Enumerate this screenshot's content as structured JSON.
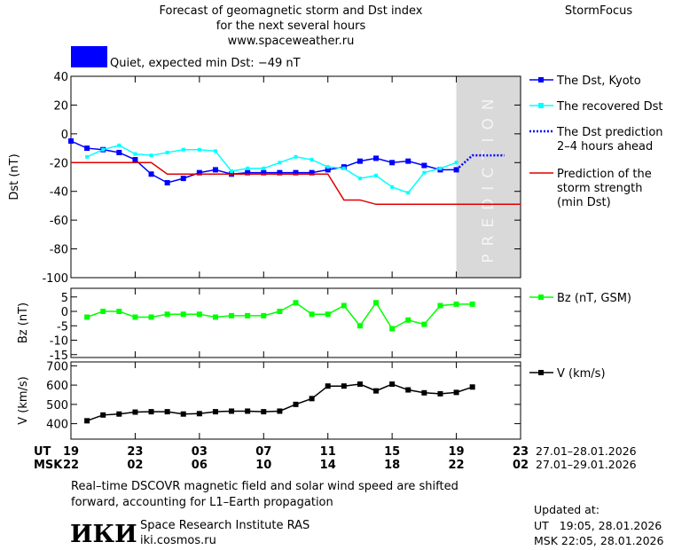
{
  "header": {
    "title": [
      "Forecast of geomagnetic storm and Dst index",
      "for the next several hours",
      "www.spaceweather.ru"
    ],
    "brand": "StormFocus",
    "status": "Quiet, expected min Dst: −49 nT",
    "status_color": "#0000ff"
  },
  "chart_data": [
    {
      "type": "line",
      "ylabel": "Dst (nT)",
      "ylim": [
        -100,
        40
      ],
      "yticks": [
        40,
        20,
        0,
        -20,
        -40,
        -60,
        -80,
        -100
      ],
      "prediction": {
        "x": [
          24,
          28
        ],
        "label": "PREDICTION"
      },
      "series": [
        {
          "name": "The Dst, Kyoto",
          "color": "#0000ff",
          "marker": "square",
          "dotted": false,
          "x": [
            0,
            1,
            2,
            3,
            4,
            5,
            6,
            7,
            8,
            9,
            10,
            11,
            12,
            13,
            14,
            15,
            16,
            17,
            18,
            19,
            20,
            21,
            22,
            23,
            24
          ],
          "values": [
            -5,
            -10,
            -11,
            -13,
            -18,
            -28,
            -34,
            -31,
            -27,
            -25,
            -28,
            -27,
            -27,
            -27,
            -27,
            -27,
            -25,
            -23,
            -19,
            -17,
            -20,
            -19,
            -22,
            -25,
            -25
          ]
        },
        {
          "name": "The recovered Dst",
          "color": "#00ffff",
          "marker": "square",
          "dotted": false,
          "x": [
            1,
            2,
            3,
            4,
            5,
            6,
            7,
            8,
            9,
            10,
            11,
            12,
            13,
            14,
            15,
            16,
            17,
            18,
            19,
            20,
            21,
            22,
            23,
            24
          ],
          "values": [
            -16,
            -11,
            -8,
            -14,
            -15,
            -13,
            -11,
            -11,
            -12,
            -26,
            -24,
            -24,
            -20,
            -16,
            -18,
            -23,
            -24,
            -31,
            -29,
            -37,
            -41,
            -27,
            -24,
            -20
          ]
        },
        {
          "name": "The Dst prediction\n2–4 hours ahead",
          "color": "#0000ff",
          "marker": "none",
          "dotted": true,
          "x": [
            24,
            25,
            26,
            27
          ],
          "values": [
            -25,
            -15,
            -15,
            -15
          ]
        },
        {
          "name": "Prediction of the\nstorm strength\n(min Dst)",
          "color": "#e00000",
          "marker": "none",
          "dotted": false,
          "x": [
            0,
            5,
            6,
            16,
            17,
            18,
            19,
            28
          ],
          "values": [
            -20,
            -20,
            -28,
            -28,
            -46,
            -46,
            -49,
            -49
          ]
        }
      ]
    },
    {
      "type": "line",
      "ylabel": "Bz (nT)",
      "ylim": [
        -16,
        8
      ],
      "yticks": [
        5,
        0,
        -5,
        -10,
        -15
      ],
      "series": [
        {
          "name": "Bz (nT, GSM)",
          "color": "#00ff00",
          "marker": "square",
          "dotted": false,
          "x": [
            1,
            2,
            3,
            4,
            5,
            6,
            7,
            8,
            9,
            10,
            11,
            12,
            13,
            14,
            15,
            16,
            17,
            18,
            19,
            20,
            21,
            22,
            23,
            24,
            25
          ],
          "values": [
            -2,
            0,
            0,
            -2,
            -2,
            -1,
            -1,
            -1,
            -2,
            -1.5,
            -1.5,
            -1.5,
            0,
            3,
            -1,
            -1,
            2,
            -5,
            3,
            -6,
            -3,
            -4.5,
            2,
            2.5,
            2.5
          ]
        }
      ]
    },
    {
      "type": "line",
      "ylabel": "V (km/s)",
      "ylim": [
        320,
        720
      ],
      "yticks": [
        700,
        600,
        500,
        400
      ],
      "xlim": [
        0,
        28
      ],
      "xticks": [
        {
          "value": 0,
          "label": "19"
        },
        {
          "value": 4,
          "label": "23"
        },
        {
          "value": 8,
          "label": "03"
        },
        {
          "value": 12,
          "label": "07"
        },
        {
          "value": 16,
          "label": "11"
        },
        {
          "value": 20,
          "label": "15"
        },
        {
          "value": 24,
          "label": "19"
        },
        {
          "value": 28,
          "label": "23"
        }
      ],
      "msk_ticks": [
        {
          "value": 0,
          "label": "22"
        },
        {
          "value": 4,
          "label": "02"
        },
        {
          "value": 8,
          "label": "06"
        },
        {
          "value": 12,
          "label": "10"
        },
        {
          "value": 16,
          "label": "14"
        },
        {
          "value": 20,
          "label": "18"
        },
        {
          "value": 24,
          "label": "22"
        },
        {
          "value": 28,
          "label": "02"
        }
      ],
      "ut_label": "UT",
      "msk_label": "MSK",
      "ut_range": "27.01–28.01.2026",
      "msk_range": "27.01–29.01.2026",
      "series": [
        {
          "name": "V (km/s)",
          "color": "#000000",
          "marker": "square",
          "dotted": false,
          "x": [
            1,
            2,
            3,
            4,
            5,
            6,
            7,
            8,
            9,
            10,
            11,
            12,
            13,
            14,
            15,
            16,
            17,
            18,
            19,
            20,
            21,
            22,
            23,
            24,
            25
          ],
          "values": [
            415,
            445,
            450,
            460,
            462,
            462,
            450,
            452,
            462,
            465,
            465,
            462,
            465,
            500,
            530,
            595,
            595,
            605,
            570,
            605,
            575,
            560,
            555,
            562,
            590
          ]
        }
      ]
    }
  ],
  "footer": {
    "note": [
      "Real–time DSCOVR magnetic field and solar wind speed are shifted",
      "forward, accounting for L1–Earth propagation"
    ],
    "logo": "ИКИ",
    "institute": "Space Research Institute RAS",
    "url": "iki.cosmos.ru",
    "updated": [
      "Updated at:",
      "UT   19:05, 28.01.2026",
      "MSK 22:05, 28.01.2026"
    ]
  }
}
